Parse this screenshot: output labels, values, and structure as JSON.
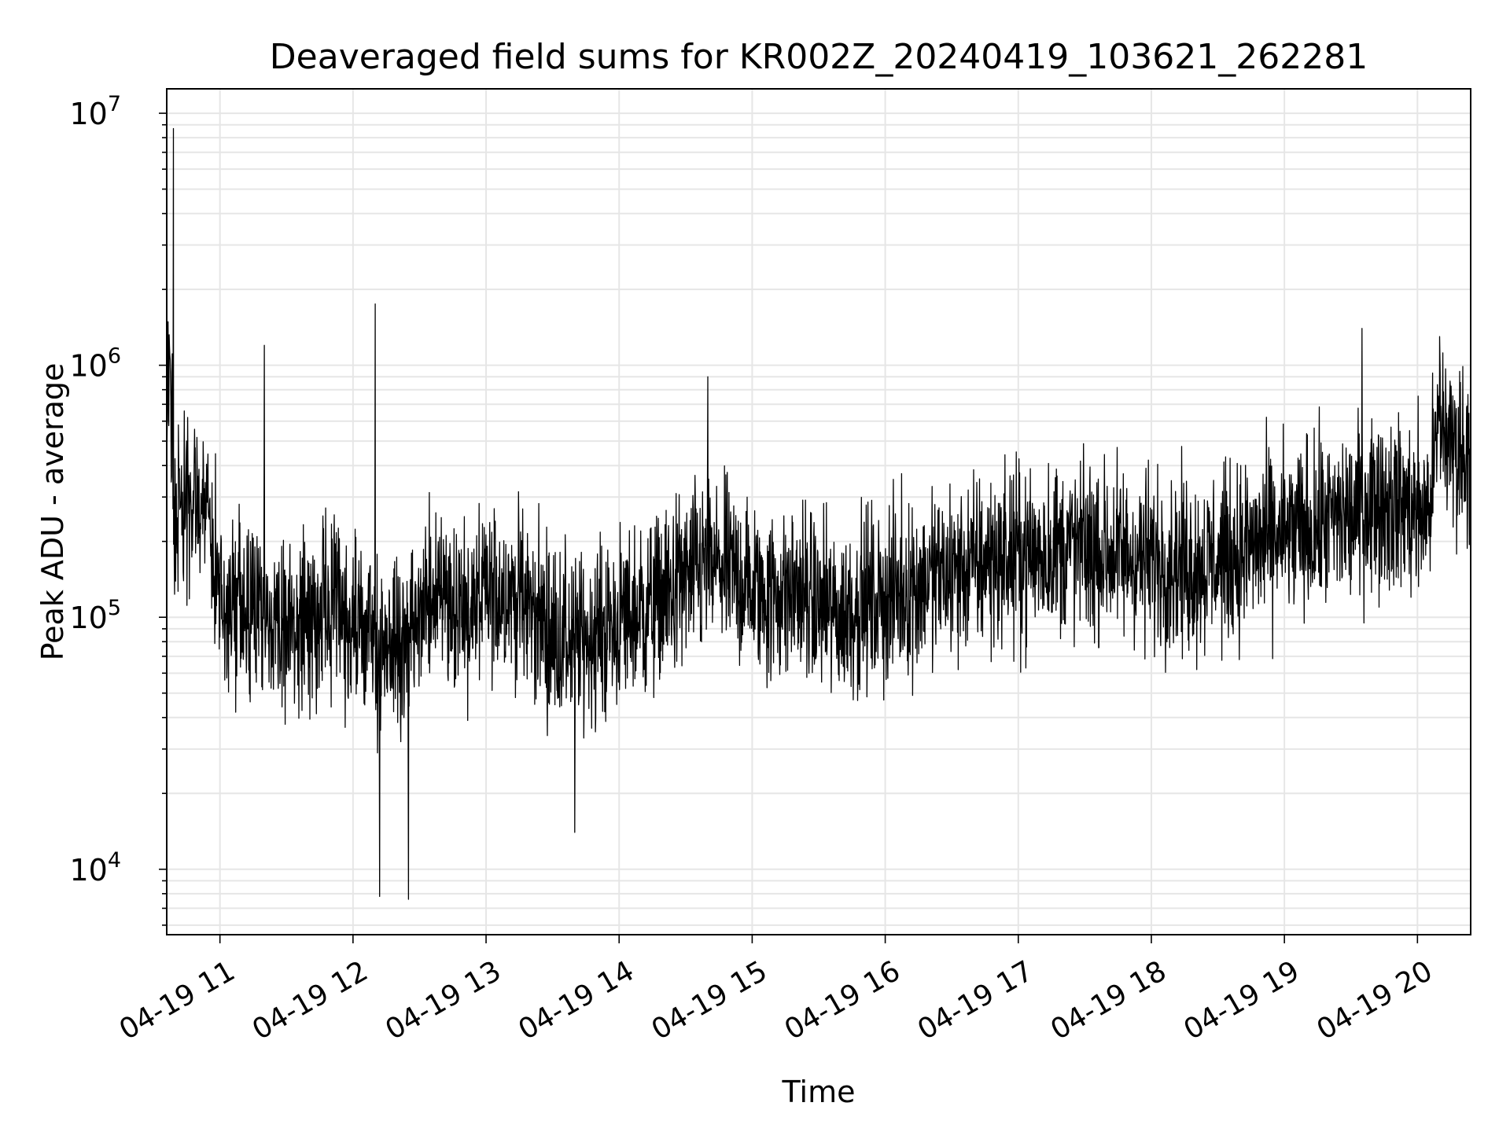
{
  "chart_data": {
    "type": "line",
    "title": "Deaveraged field sums for KR002Z_20240419_103621_262281",
    "xlabel": "Time",
    "ylabel": "Peak ADU - average",
    "yscale": "log",
    "ylim": [
      5500,
      12500000
    ],
    "xlim": [
      "2024-04-19 10:36",
      "2024-04-19 20:24"
    ],
    "x_ticks": [
      {
        "value": "2024-04-19 11:00",
        "label": "04-19 11"
      },
      {
        "value": "2024-04-19 12:00",
        "label": "04-19 12"
      },
      {
        "value": "2024-04-19 13:00",
        "label": "04-19 13"
      },
      {
        "value": "2024-04-19 14:00",
        "label": "04-19 14"
      },
      {
        "value": "2024-04-19 15:00",
        "label": "04-19 15"
      },
      {
        "value": "2024-04-19 16:00",
        "label": "04-19 16"
      },
      {
        "value": "2024-04-19 17:00",
        "label": "04-19 17"
      },
      {
        "value": "2024-04-19 18:00",
        "label": "04-19 18"
      },
      {
        "value": "2024-04-19 19:00",
        "label": "04-19 19"
      },
      {
        "value": "2024-04-19 20:00",
        "label": "04-19 20"
      }
    ],
    "y_ticks": [
      {
        "value": 10000,
        "base": "10",
        "exp": "4"
      },
      {
        "value": 100000,
        "base": "10",
        "exp": "5"
      },
      {
        "value": 1000000,
        "base": "10",
        "exp": "6"
      },
      {
        "value": 10000000,
        "base": "10",
        "exp": "7"
      }
    ],
    "grid": "major-and-minor",
    "line_color": "#000000",
    "grid_color": "#e6e6e6",
    "series": [
      {
        "x": [
          "2024-04-19 10:36",
          "2024-04-19 10:37",
          "2024-04-19 10:38",
          "2024-04-19 10:39",
          "2024-04-19 10:40",
          "2024-04-19 10:45",
          "2024-04-19 10:50",
          "2024-04-19 10:55",
          "2024-04-19 11:00",
          "2024-04-19 11:10",
          "2024-04-19 11:20",
          "2024-04-19 11:30",
          "2024-04-19 11:40",
          "2024-04-19 11:50",
          "2024-04-19 12:00",
          "2024-04-19 12:10",
          "2024-04-19 12:20",
          "2024-04-19 12:30",
          "2024-04-19 12:40",
          "2024-04-19 12:50",
          "2024-04-19 13:00",
          "2024-04-19 13:10",
          "2024-04-19 13:20",
          "2024-04-19 13:30",
          "2024-04-19 13:40",
          "2024-04-19 13:50",
          "2024-04-19 14:00",
          "2024-04-19 14:10",
          "2024-04-19 14:20",
          "2024-04-19 14:30",
          "2024-04-19 14:40",
          "2024-04-19 14:50",
          "2024-04-19 15:00",
          "2024-04-19 15:10",
          "2024-04-19 15:20",
          "2024-04-19 15:30",
          "2024-04-19 15:40",
          "2024-04-19 15:50",
          "2024-04-19 16:00",
          "2024-04-19 16:10",
          "2024-04-19 16:20",
          "2024-04-19 16:30",
          "2024-04-19 16:40",
          "2024-04-19 16:50",
          "2024-04-19 17:00",
          "2024-04-19 17:10",
          "2024-04-19 17:20",
          "2024-04-19 17:30",
          "2024-04-19 17:40",
          "2024-04-19 17:50",
          "2024-04-19 18:00",
          "2024-04-19 18:10",
          "2024-04-19 18:20",
          "2024-04-19 18:30",
          "2024-04-19 18:40",
          "2024-04-19 18:50",
          "2024-04-19 19:00",
          "2024-04-19 19:10",
          "2024-04-19 19:20",
          "2024-04-19 19:30",
          "2024-04-19 19:40",
          "2024-04-19 19:50",
          "2024-04-19 20:00",
          "2024-04-19 20:05",
          "2024-04-19 20:10",
          "2024-04-19 20:15",
          "2024-04-19 20:20",
          "2024-04-19 20:24"
        ],
        "y": [
          600000,
          800000,
          700000,
          400000,
          250000,
          300000,
          260000,
          250000,
          120000,
          100000,
          95000,
          90000,
          95000,
          110000,
          90000,
          80000,
          75000,
          95000,
          140000,
          100000,
          120000,
          130000,
          110000,
          85000,
          80000,
          85000,
          95000,
          105000,
          120000,
          140000,
          160000,
          150000,
          130000,
          120000,
          130000,
          110000,
          100000,
          115000,
          120000,
          130000,
          140000,
          150000,
          160000,
          170000,
          175000,
          180000,
          190000,
          185000,
          180000,
          175000,
          170000,
          165000,
          160000,
          170000,
          180000,
          200000,
          210000,
          220000,
          240000,
          250000,
          300000,
          280000,
          260000,
          270000,
          600000,
          500000,
          450000,
          500000
        ],
        "spikes": [
          {
            "x": "2024-04-19 10:39",
            "y": 8700000
          },
          {
            "x": "2024-04-19 11:20",
            "y": 1200000
          },
          {
            "x": "2024-04-19 12:10",
            "y": 1750000
          },
          {
            "x": "2024-04-19 12:12",
            "y": 7800
          },
          {
            "x": "2024-04-19 12:25",
            "y": 7600
          },
          {
            "x": "2024-04-19 13:40",
            "y": 14000
          },
          {
            "x": "2024-04-19 14:40",
            "y": 900000
          },
          {
            "x": "2024-04-19 19:35",
            "y": 1400000
          },
          {
            "x": "2024-04-19 20:10",
            "y": 1300000
          }
        ]
      }
    ]
  }
}
